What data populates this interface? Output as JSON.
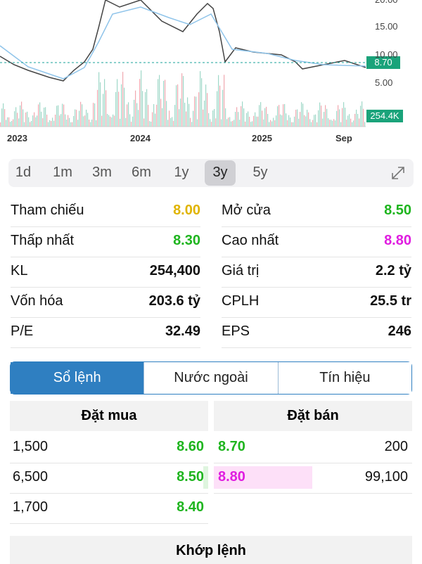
{
  "chart": {
    "y_axis_labels": [
      "20.00",
      "15.00",
      "10.00",
      "5.00"
    ],
    "price_label": "8.70",
    "volume_label": "254.4K",
    "x_axis_labels": [
      "2023",
      "2024",
      "2025",
      "Sep"
    ]
  },
  "range_tabs": {
    "options": [
      "1d",
      "1m",
      "3m",
      "6m",
      "1y",
      "3y",
      "5y"
    ],
    "selected_index": 5
  },
  "stats": [
    [
      {
        "label": "Tham chiếu",
        "value": "8.00",
        "color": "#e0b400"
      },
      {
        "label": "Mở cửa",
        "value": "8.50",
        "color": "#1fb51f"
      }
    ],
    [
      {
        "label": "Thấp nhất",
        "value": "8.30",
        "color": "#1fb51f"
      },
      {
        "label": "Cao nhất",
        "value": "8.80",
        "color": "#e01ee0"
      }
    ],
    [
      {
        "label": "KL",
        "value": "254,400",
        "color": "#111111"
      },
      {
        "label": "Giá trị",
        "value": "2.2 tỷ",
        "color": "#111111"
      }
    ],
    [
      {
        "label": "Vốn hóa",
        "value": "203.6 tỷ",
        "color": "#111111"
      },
      {
        "label": "CPLH",
        "value": "25.5 tr",
        "color": "#111111"
      }
    ],
    [
      {
        "label": "P/E",
        "value": "32.49",
        "color": "#111111"
      },
      {
        "label": "EPS",
        "value": "246",
        "color": "#111111"
      }
    ]
  ],
  "tabs": {
    "options": [
      "Sổ lệnh",
      "Nước ngoài",
      "Tín hiệu"
    ],
    "selected_index": 0
  },
  "order_book": {
    "buy_header": "Đặt mua",
    "sell_header": "Đặt bán",
    "buy": [
      {
        "volume": "1,500",
        "price": "8.60",
        "color": "#1fb51f"
      },
      {
        "volume": "6,500",
        "price": "8.50",
        "color": "#1fb51f"
      },
      {
        "volume": "1,700",
        "price": "8.40",
        "color": "#1fb51f"
      }
    ],
    "sell": [
      {
        "price": "8.70",
        "volume": "200",
        "color": "#1fb51f"
      },
      {
        "price": "8.80",
        "volume": "99,100",
        "color": "#e01ee0"
      }
    ]
  },
  "match_header": "Khớp lệnh"
}
